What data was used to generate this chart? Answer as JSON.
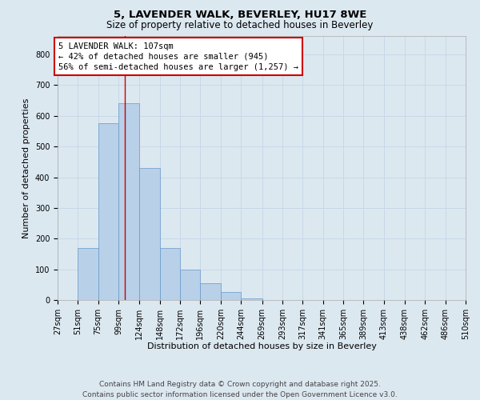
{
  "title_line1": "5, LAVENDER WALK, BEVERLEY, HU17 8WE",
  "title_line2": "Size of property relative to detached houses in Beverley",
  "xlabel": "Distribution of detached houses by size in Beverley",
  "ylabel": "Number of detached properties",
  "bin_edges": [
    27,
    51,
    75,
    99,
    124,
    148,
    172,
    196,
    220,
    244,
    269,
    293,
    317,
    341,
    365,
    389,
    413,
    438,
    462,
    486,
    510
  ],
  "bar_heights": [
    0,
    170,
    575,
    640,
    430,
    170,
    100,
    55,
    25,
    5,
    0,
    0,
    0,
    0,
    0,
    0,
    0,
    0,
    0,
    0
  ],
  "bar_color": "#b8d0e8",
  "bar_edgecolor": "#6699cc",
  "property_size": 107,
  "red_line_color": "#cc0000",
  "annotation_text": "5 LAVENDER WALK: 107sqm\n← 42% of detached houses are smaller (945)\n56% of semi-detached houses are larger (1,257) →",
  "annotation_box_edgecolor": "#cc0000",
  "annotation_box_facecolor": "#ffffff",
  "ylim": [
    0,
    860
  ],
  "yticks": [
    0,
    100,
    200,
    300,
    400,
    500,
    600,
    700,
    800
  ],
  "grid_color": "#c8d8e8",
  "background_color": "#dce8f0",
  "footer_line1": "Contains HM Land Registry data © Crown copyright and database right 2025.",
  "footer_line2": "Contains public sector information licensed under the Open Government Licence v3.0.",
  "title_fontsize": 9.5,
  "subtitle_fontsize": 8.5,
  "axis_label_fontsize": 8,
  "tick_fontsize": 7,
  "annotation_fontsize": 7.5,
  "footer_fontsize": 6.5
}
